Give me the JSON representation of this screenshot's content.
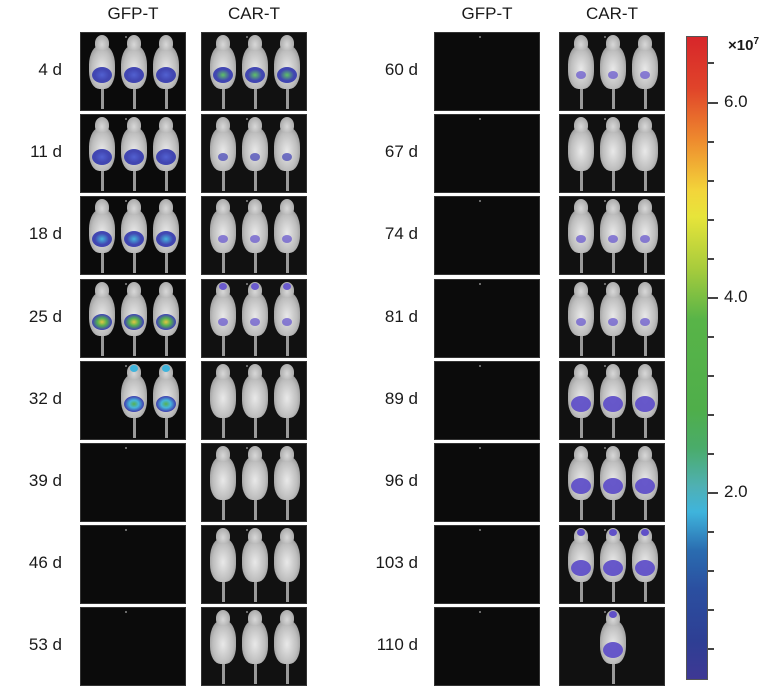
{
  "figure": {
    "columns_left": [
      "GFP-T",
      "CAR-T"
    ],
    "columns_right": [
      "GFP-T",
      "CAR-T"
    ],
    "rows_left": [
      "4 d",
      "11 d",
      "18 d",
      "25 d",
      "32 d",
      "39 d",
      "46 d",
      "53 d"
    ],
    "rows_right": [
      "60 d",
      "67 d",
      "74 d",
      "81 d",
      "89 d",
      "96 d",
      "103 d",
      "110 d"
    ]
  },
  "colorbar": {
    "exponent_label": "×10",
    "exponent_power": "7",
    "tick_labels": [
      "6.0",
      "4.0",
      "2.0"
    ],
    "colors": {
      "high": "#d7262a",
      "mid_high": "#f3d53a",
      "mid": "#4fae4a",
      "mid_low": "#3fb4dc",
      "low": "#3e3894"
    }
  },
  "panels": {
    "left_gfp": [
      {
        "day": "4 d",
        "mice": 3,
        "signal": "blue-abdominal"
      },
      {
        "day": "11 d",
        "mice": 3,
        "signal": "blue-abdominal"
      },
      {
        "day": "18 d",
        "mice": 3,
        "signal": "blue-cyan-abdominal"
      },
      {
        "day": "25 d",
        "mice": 3,
        "signal": "green-yellow-abdominal"
      },
      {
        "day": "32 d",
        "mice": 2,
        "signal": "cyan-green-whole-body"
      },
      {
        "day": "39 d",
        "mice": 0,
        "signal": "none"
      },
      {
        "day": "46 d",
        "mice": 0,
        "signal": "none"
      },
      {
        "day": "53 d",
        "mice": 0,
        "signal": "none"
      }
    ],
    "left_car": [
      {
        "day": "4 d",
        "mice": 3,
        "signal": "blue-green-abdominal"
      },
      {
        "day": "11 d",
        "mice": 3,
        "signal": "faint-blue"
      },
      {
        "day": "18 d",
        "mice": 3,
        "signal": "faint-purple"
      },
      {
        "day": "25 d",
        "mice": 3,
        "signal": "faint-purple-head"
      },
      {
        "day": "32 d",
        "mice": 3,
        "signal": "none"
      },
      {
        "day": "39 d",
        "mice": 3,
        "signal": "none"
      },
      {
        "day": "46 d",
        "mice": 3,
        "signal": "none"
      },
      {
        "day": "53 d",
        "mice": 3,
        "signal": "none"
      }
    ],
    "right_gfp": [
      {
        "day": "60 d",
        "mice": 0,
        "signal": "none"
      },
      {
        "day": "67 d",
        "mice": 0,
        "signal": "none"
      },
      {
        "day": "74 d",
        "mice": 0,
        "signal": "none"
      },
      {
        "day": "81 d",
        "mice": 0,
        "signal": "none"
      },
      {
        "day": "89 d",
        "mice": 0,
        "signal": "none"
      },
      {
        "day": "96 d",
        "mice": 0,
        "signal": "none"
      },
      {
        "day": "103 d",
        "mice": 0,
        "signal": "none"
      },
      {
        "day": "110 d",
        "mice": 0,
        "signal": "none"
      }
    ],
    "right_car": [
      {
        "day": "60 d",
        "mice": 3,
        "signal": "faint-purple"
      },
      {
        "day": "67 d",
        "mice": 3,
        "signal": "none"
      },
      {
        "day": "74 d",
        "mice": 3,
        "signal": "faint-purple"
      },
      {
        "day": "81 d",
        "mice": 3,
        "signal": "faint-purple"
      },
      {
        "day": "89 d",
        "mice": 3,
        "signal": "purple-abdominal"
      },
      {
        "day": "96 d",
        "mice": 3,
        "signal": "purple-abdominal"
      },
      {
        "day": "103 d",
        "mice": 3,
        "signal": "purple-abdominal-head"
      },
      {
        "day": "110 d",
        "mice": 1,
        "signal": "purple-abdominal-head"
      }
    ]
  }
}
